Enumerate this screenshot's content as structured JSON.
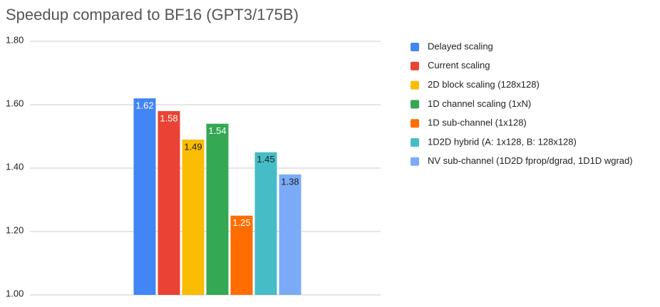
{
  "chart_data": {
    "type": "bar",
    "title": "Speedup compared to BF16 (GPT3/175B)",
    "categories": [
      null
    ],
    "series": [
      {
        "name": "Delayed scaling",
        "color": "#4285f4",
        "values": [
          1.62
        ]
      },
      {
        "name": "Current scaling",
        "color": "#ea4335",
        "values": [
          1.58
        ]
      },
      {
        "name": "2D block scaling (128x128)",
        "color": "#fbbc04",
        "values": [
          1.49
        ]
      },
      {
        "name": "1D channel scaling (1xN)",
        "color": "#34a853",
        "values": [
          1.54
        ]
      },
      {
        "name": "1D sub-channel (1x128)",
        "color": "#ff6d01",
        "values": [
          1.25
        ]
      },
      {
        "name": "1D2D hybrid (A: 1x128, B: 128x128)",
        "color": "#46bdc6",
        "values": [
          1.45
        ]
      },
      {
        "name": "NV sub-channel (1D2D fprop/dgrad, 1D1D wgrad)",
        "color": "#7baaf7",
        "values": [
          1.38
        ]
      }
    ],
    "ylim": [
      1,
      1.8
    ],
    "yticks": [
      {
        "value": 1,
        "label": "1.00"
      },
      {
        "value": 1.2,
        "label": "1.20"
      },
      {
        "value": 1.4,
        "label": "1.40"
      },
      {
        "value": 1.6,
        "label": "1.60"
      },
      {
        "value": 1.8,
        "label": "1.80"
      }
    ],
    "grid": true,
    "legend": "right"
  }
}
